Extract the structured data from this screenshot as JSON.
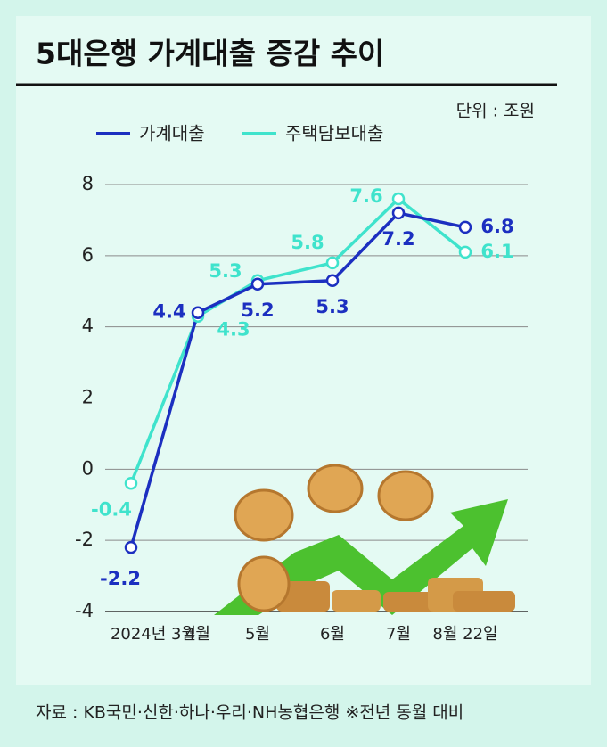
{
  "chart_data": {
    "type": "line",
    "title": "5대은행 가계대출 증감 추이",
    "unit": "단위 : 조원",
    "source": "자료 : KB국민·신한·하나·우리·NH농협은행 ※전년 동월 대비",
    "categories": [
      "2024년 3월",
      "4월",
      "5월",
      "6월",
      "7월",
      "8월 22일"
    ],
    "series": [
      {
        "name": "가계대출",
        "color": "#1c2fc0",
        "values": [
          -2.2,
          4.4,
          5.2,
          5.3,
          7.2,
          6.8
        ]
      },
      {
        "name": "주택담보대출",
        "color": "#3fe3cc",
        "values": [
          -0.4,
          4.3,
          5.3,
          5.8,
          7.6,
          6.1
        ]
      }
    ],
    "ylim": [
      -4,
      8
    ],
    "yticks": [
      -4,
      -2,
      0,
      2,
      4,
      6,
      8
    ],
    "grid": true
  }
}
